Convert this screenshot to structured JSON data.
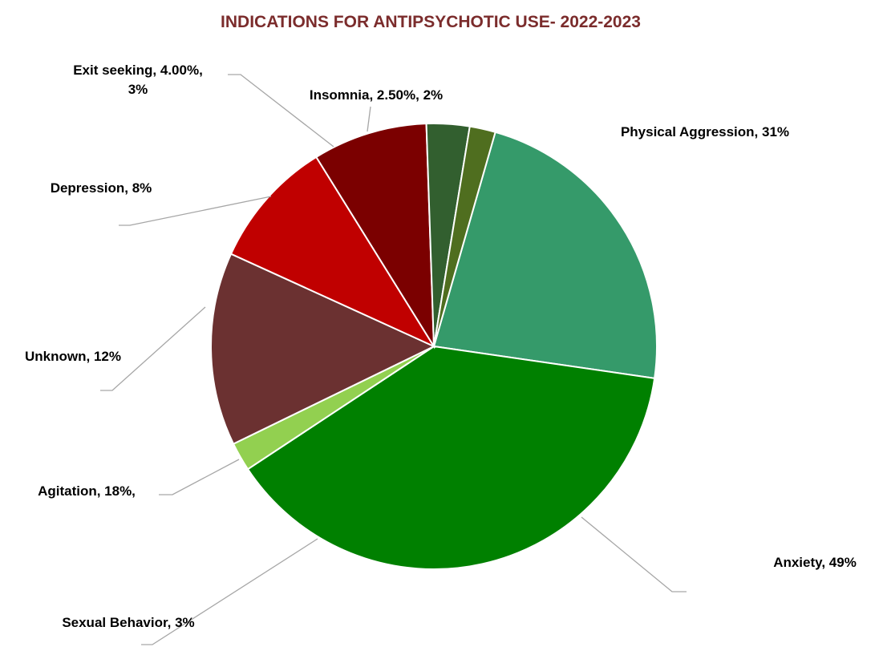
{
  "chart_data": {
    "type": "pie",
    "title": "INDICATIONS FOR ANTIPSYCHOTIC USE- 2022-2023",
    "title_color": "#7b2c2c",
    "start_angle_deg": 16,
    "slices": [
      {
        "name": "Physical Aggression",
        "value": 22,
        "color": "#359a6a",
        "label_lines": [
          "Physical Aggression, 31%"
        ]
      },
      {
        "name": "Anxiety",
        "value": 37,
        "color": "#008000",
        "label_lines": [
          "Anxiety, 49%"
        ]
      },
      {
        "name": "Sexual Behavior",
        "value": 2,
        "color": "#92d050",
        "label_lines": [
          "Sexual Behavior, 3%"
        ]
      },
      {
        "name": "Agitation",
        "value": 13.5,
        "color": "#6b3131",
        "label_lines": [
          "Agitation, 18%,"
        ]
      },
      {
        "name": "Unknown",
        "value": 9,
        "color": "#c00000",
        "label_lines": [
          "Unknown, 12%"
        ]
      },
      {
        "name": "Depression",
        "value": 8,
        "color": "#7b0000",
        "label_lines": [
          "Depression, 8%"
        ]
      },
      {
        "name": "Exit seeking",
        "value": 3,
        "color": "#325f2f",
        "label_lines": [
          "Exit seeking, 4.00%,",
          "3%"
        ]
      },
      {
        "name": "Insomnia",
        "value": 1.8,
        "color": "#4f6e1f",
        "label_lines": [
          "Insomnia, 2.50%, 2%"
        ]
      }
    ]
  }
}
